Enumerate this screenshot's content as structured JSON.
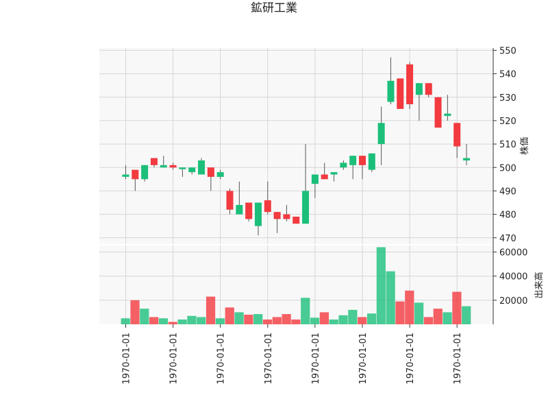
{
  "chart_data": {
    "type": "candlestick",
    "title": "鉱研工業",
    "ylabel_price": "株価",
    "ylabel_volume": "出来高",
    "x_tick_labels": [
      "1970-01-01",
      "1970-01-01",
      "1970-01-01",
      "1970-01-01",
      "1970-01-01",
      "1970-01-01",
      "1970-01-01",
      "1970-01-01"
    ],
    "x_tick_candle_index": [
      0,
      5,
      10,
      15,
      20,
      25,
      30,
      35
    ],
    "price_ticks": [
      470,
      480,
      490,
      500,
      510,
      520,
      530,
      540,
      550
    ],
    "volume_ticks": [
      20000,
      40000,
      60000
    ],
    "price_ylim": [
      467,
      551
    ],
    "volume_ylim": [
      0,
      66000
    ],
    "up_color": "#1bbf7a",
    "down_color": "#f23a3f",
    "grid": true,
    "candles": [
      {
        "open": 496,
        "high": 501,
        "low": 495,
        "close": 497,
        "volume": 5000
      },
      {
        "open": 499,
        "high": 499,
        "low": 490,
        "close": 495,
        "volume": 20000
      },
      {
        "open": 495,
        "high": 501,
        "low": 494,
        "close": 501,
        "volume": 13000
      },
      {
        "open": 504,
        "high": 504,
        "low": 500,
        "close": 501,
        "volume": 6000
      },
      {
        "open": 500,
        "high": 505,
        "low": 500,
        "close": 501,
        "volume": 5000
      },
      {
        "open": 501,
        "high": 502,
        "low": 499,
        "close": 500,
        "volume": 2000
      },
      {
        "open": 500,
        "high": 500,
        "low": 496,
        "close": 500,
        "volume": 4000
      },
      {
        "open": 498,
        "high": 500,
        "low": 497,
        "close": 500,
        "volume": 7000
      },
      {
        "open": 497,
        "high": 504,
        "low": 497,
        "close": 503,
        "volume": 6000
      },
      {
        "open": 500,
        "high": 500,
        "low": 490,
        "close": 496,
        "volume": 23000
      },
      {
        "open": 496,
        "high": 499,
        "low": 495,
        "close": 498,
        "volume": 5000
      },
      {
        "open": 490,
        "high": 491,
        "low": 480,
        "close": 482,
        "volume": 14000
      },
      {
        "open": 480,
        "high": 494,
        "low": 480,
        "close": 484,
        "volume": 10000
      },
      {
        "open": 485,
        "high": 485,
        "low": 477,
        "close": 478,
        "volume": 8000
      },
      {
        "open": 475,
        "high": 485,
        "low": 471,
        "close": 485,
        "volume": 8500
      },
      {
        "open": 486,
        "high": 494,
        "low": 480,
        "close": 481,
        "volume": 4000
      },
      {
        "open": 481,
        "high": 481,
        "low": 472,
        "close": 478,
        "volume": 6000
      },
      {
        "open": 480,
        "high": 484,
        "low": 477,
        "close": 478,
        "volume": 8500
      },
      {
        "open": 479,
        "high": 479,
        "low": 476,
        "close": 476,
        "volume": 4000
      },
      {
        "open": 476,
        "high": 510,
        "low": 476,
        "close": 490,
        "volume": 22000
      },
      {
        "open": 493,
        "high": 497,
        "low": 487,
        "close": 497,
        "volume": 5500
      },
      {
        "open": 497,
        "high": 502,
        "low": 495,
        "close": 495,
        "volume": 10000
      },
      {
        "open": 497,
        "high": 498,
        "low": 494,
        "close": 498,
        "volume": 4000
      },
      {
        "open": 500,
        "high": 503,
        "low": 499,
        "close": 502,
        "volume": 7500
      },
      {
        "open": 501,
        "high": 505,
        "low": 495,
        "close": 505,
        "volume": 12000
      },
      {
        "open": 505,
        "high": 505,
        "low": 495,
        "close": 501,
        "volume": 6000
      },
      {
        "open": 499,
        "high": 506,
        "low": 498,
        "close": 506,
        "volume": 9000
      },
      {
        "open": 510,
        "high": 526,
        "low": 501,
        "close": 519,
        "volume": 64000
      },
      {
        "open": 528,
        "high": 547,
        "low": 527,
        "close": 537,
        "volume": 44000
      },
      {
        "open": 538,
        "high": 538,
        "low": 525,
        "close": 525,
        "volume": 19000
      },
      {
        "open": 544,
        "high": 545,
        "low": 525,
        "close": 527,
        "volume": 28000
      },
      {
        "open": 531,
        "high": 536,
        "low": 520,
        "close": 536,
        "volume": 18000
      },
      {
        "open": 536,
        "high": 536,
        "low": 530,
        "close": 531,
        "volume": 6000
      },
      {
        "open": 530,
        "high": 530,
        "low": 517,
        "close": 517,
        "volume": 13000
      },
      {
        "open": 522,
        "high": 531,
        "low": 520,
        "close": 523,
        "volume": 10000
      },
      {
        "open": 519,
        "high": 519,
        "low": 504,
        "close": 509,
        "volume": 27000
      },
      {
        "open": 503,
        "high": 510,
        "low": 501,
        "close": 504,
        "volume": 15000
      }
    ]
  }
}
